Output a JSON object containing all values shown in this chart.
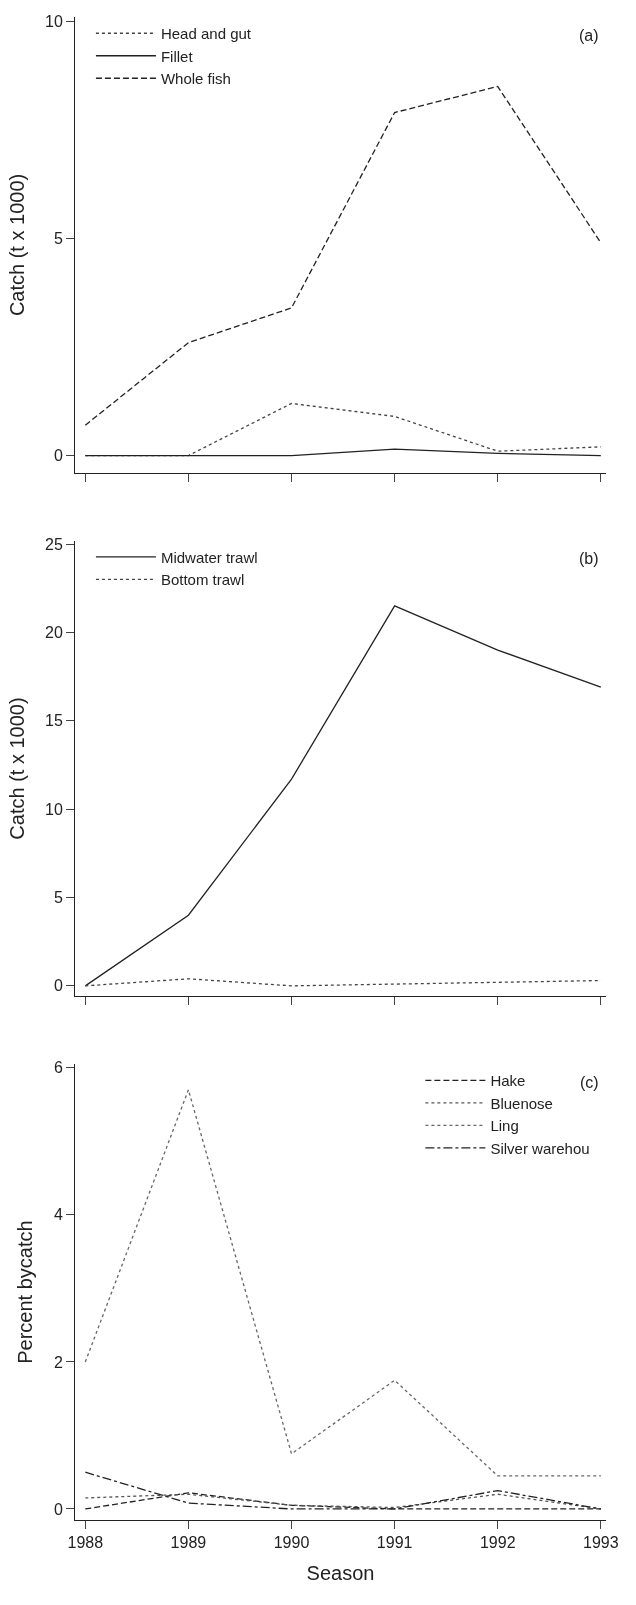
{
  "chart_data": [
    {
      "type": "line",
      "ylabel": "Catch (t x 1000)",
      "annotations": [
        "(a)"
      ],
      "x": [
        1988,
        1989,
        1990,
        1991,
        1992,
        1993
      ],
      "xlim": [
        1987.9,
        1993.05
      ],
      "xticks": [
        {
          "value": 1988,
          "label": null
        },
        {
          "value": 1989,
          "label": null
        },
        {
          "value": 1990,
          "label": null
        },
        {
          "value": 1991,
          "label": null
        },
        {
          "value": 1992,
          "label": null
        },
        {
          "value": 1993,
          "label": null
        }
      ],
      "ylim": [
        -0.4,
        10.1
      ],
      "yticks": [
        0,
        5,
        10
      ],
      "legend": "top left",
      "tick_labels": "y",
      "series": [
        {
          "name": "Head and gut",
          "color": "#444444",
          "line_style": "dotted",
          "values": [
            0,
            0,
            1.2,
            0.9,
            0.1,
            0.2
          ]
        },
        {
          "name": "Fillet",
          "color": "#222222",
          "line_style": "solid",
          "values": [
            0,
            0,
            0,
            0.15,
            0.05,
            0
          ]
        },
        {
          "name": "Whole fish",
          "color": "#222222",
          "line_style": "dashed",
          "values": [
            0.7,
            2.6,
            3.4,
            7.9,
            8.5,
            4.9
          ]
        }
      ]
    },
    {
      "type": "line",
      "ylabel": "Catch (t x 1000)",
      "annotations": [
        "(b)"
      ],
      "x": [
        1988,
        1989,
        1990,
        1991,
        1992,
        1993
      ],
      "xlim": [
        1987.9,
        1993.05
      ],
      "xticks": [
        {
          "value": 1988,
          "label": null
        },
        {
          "value": 1989,
          "label": null
        },
        {
          "value": 1990,
          "label": null
        },
        {
          "value": 1991,
          "label": null
        },
        {
          "value": 1992,
          "label": null
        },
        {
          "value": 1993,
          "label": null
        }
      ],
      "ylim": [
        -0.6,
        25.2
      ],
      "yticks": [
        0,
        5,
        10,
        15,
        20,
        25
      ],
      "legend": "top left",
      "tick_labels": "y",
      "series": [
        {
          "name": "Midwater trawl",
          "color": "#222222",
          "line_style": "solid",
          "values": [
            0,
            4,
            11.7,
            21.5,
            19,
            16.9
          ]
        },
        {
          "name": "Bottom trawl",
          "color": "#444444",
          "line_style": "dotted",
          "values": [
            0,
            0.4,
            0,
            0.1,
            0.2,
            0.3
          ]
        }
      ]
    },
    {
      "type": "line",
      "xlabel": "Season",
      "ylabel": "Percent bycatch",
      "annotations": [
        "(c)"
      ],
      "x": [
        1988,
        1989,
        1990,
        1991,
        1992,
        1993
      ],
      "xlim": [
        1987.9,
        1993.05
      ],
      "xticks": [
        1988,
        1989,
        1990,
        1991,
        1992,
        1993
      ],
      "ylim": [
        -0.15,
        6.05
      ],
      "yticks": [
        0,
        2,
        4,
        6
      ],
      "legend": "top right",
      "series": [
        {
          "name": "Hake",
          "color": "#222222",
          "line_style": "dashed",
          "values": [
            0,
            0.22,
            0.05,
            0,
            0,
            0
          ]
        },
        {
          "name": "Bluenose",
          "color": "#555555",
          "line_style": "dotted",
          "values": [
            0.15,
            0.2,
            0.05,
            0.02,
            0.2,
            0
          ]
        },
        {
          "name": "Ling",
          "color": "#666666",
          "line_style": "dotted",
          "values": [
            2,
            5.7,
            0.75,
            1.75,
            0.45,
            0.45
          ]
        },
        {
          "name": "Silver warehou",
          "color": "#222222",
          "line_style": "dashdot",
          "values": [
            0.5,
            0.08,
            0,
            0,
            0.25,
            0
          ]
        }
      ]
    }
  ]
}
